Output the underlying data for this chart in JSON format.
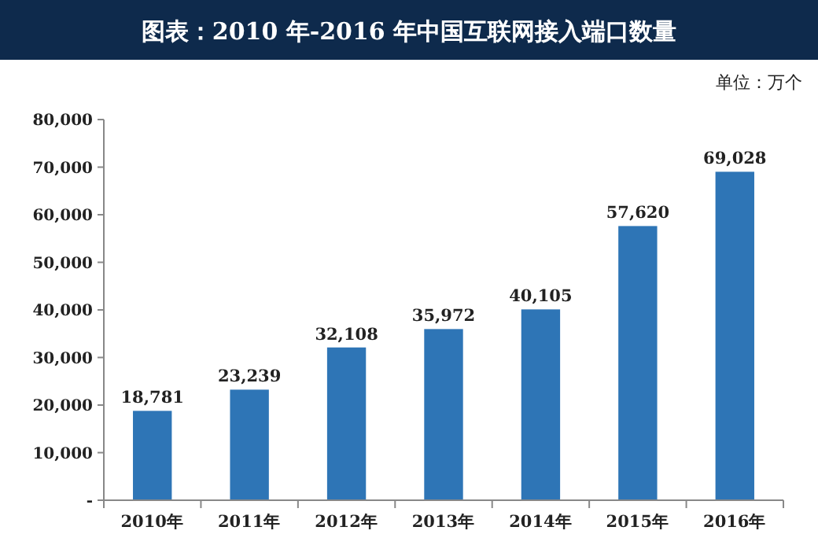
{
  "chart_data": {
    "type": "bar",
    "title": "图表：2010 年-2016 年中国互联网接入端口数量",
    "annotations": [
      "单位：万个"
    ],
    "categories": [
      "2010年",
      "2011年",
      "2012年",
      "2013年",
      "2014年",
      "2015年",
      "2016年"
    ],
    "values": [
      18781,
      23239,
      32108,
      35972,
      40105,
      57620,
      69028
    ],
    "color": "#2e75b6",
    "ylim": [
      0,
      80000
    ],
    "yticks": [
      {
        "value": 0,
        "label": "-"
      },
      {
        "value": 10000,
        "label": "10,000"
      },
      {
        "value": 20000,
        "label": "20,000"
      },
      {
        "value": 30000,
        "label": "30,000"
      },
      {
        "value": 40000,
        "label": "40,000"
      },
      {
        "value": 50000,
        "label": "50,000"
      },
      {
        "value": 60000,
        "label": "60,000"
      },
      {
        "value": 70000,
        "label": "70,000"
      },
      {
        "value": 80000,
        "label": "80,000"
      }
    ],
    "value_labels": [
      "18,781",
      "23,239",
      "32,108",
      "35,972",
      "40,105",
      "57,620",
      "69,028"
    ],
    "grid": false
  }
}
